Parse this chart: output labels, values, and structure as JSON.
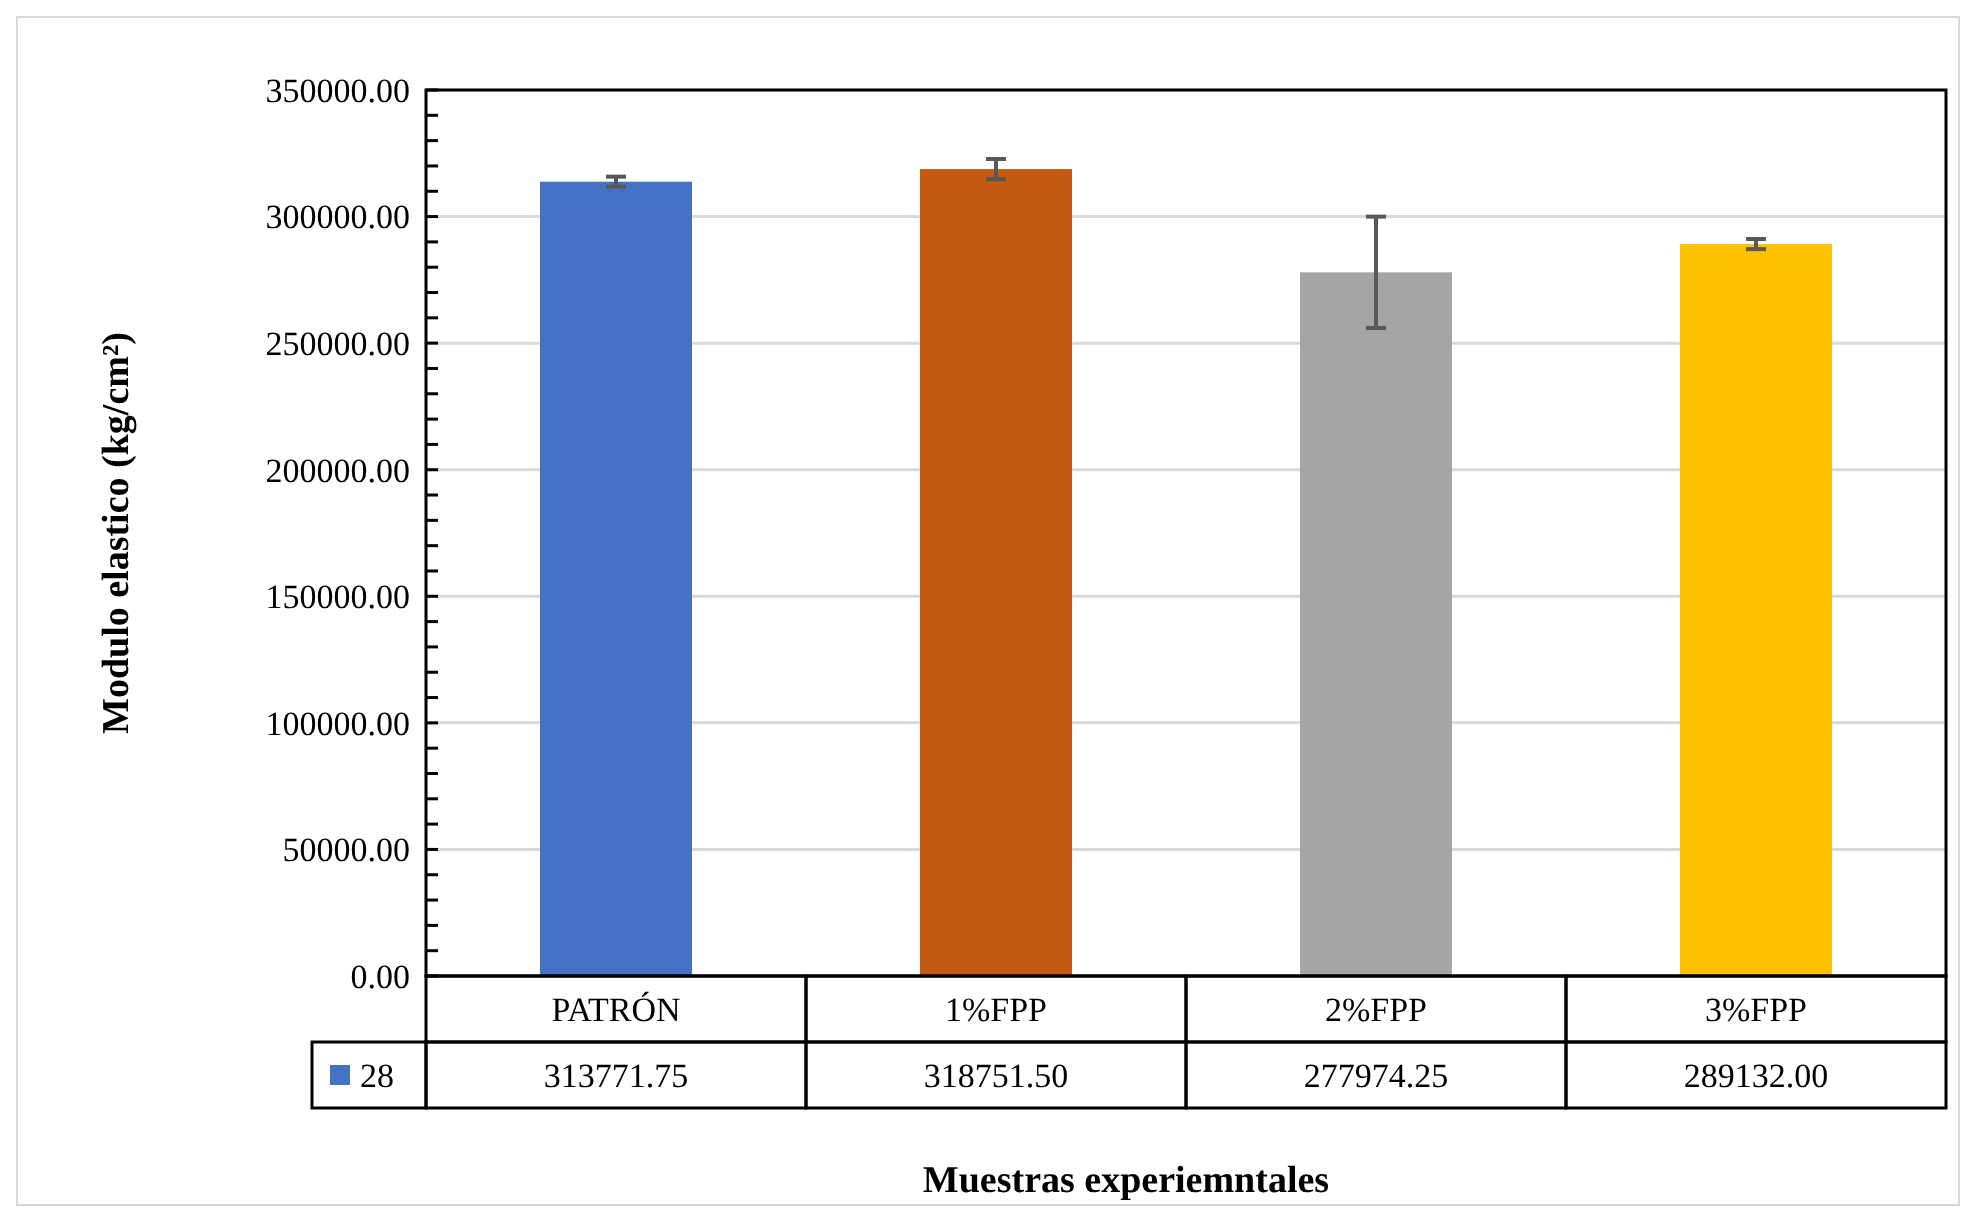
{
  "chart_data": {
    "type": "bar",
    "xlabel": "Muestras experiemntales",
    "ylabel": "Modulo elastico (kg/cm²)",
    "categories": [
      "PATRÓN",
      "1%FPP",
      "2%FPP",
      "3%FPP"
    ],
    "series": [
      {
        "name": "28",
        "color": "#4472c4",
        "colors": [
          "#4472c4",
          "#c55a11",
          "#a5a5a5",
          "#ffc000"
        ],
        "values": [
          313771.75,
          318751.5,
          277974.25,
          289132.0
        ],
        "errors": [
          2000,
          4000,
          22000,
          2000
        ],
        "value_labels": [
          "313771.75",
          "318751.50",
          "277974.25",
          "289132.00"
        ]
      }
    ],
    "grid": "y",
    "legend": "bottom",
    "ylim": [
      0,
      350000
    ],
    "yticks": [
      {
        "value": 0,
        "label": "0.00"
      },
      {
        "value": 10000,
        "label": null
      },
      {
        "value": 20000,
        "label": null
      },
      {
        "value": 30000,
        "label": null
      },
      {
        "value": 40000,
        "label": null
      },
      {
        "value": 50000,
        "label": "50000.00"
      },
      {
        "value": 60000,
        "label": null
      },
      {
        "value": 70000,
        "label": null
      },
      {
        "value": 80000,
        "label": null
      },
      {
        "value": 90000,
        "label": null
      },
      {
        "value": 100000,
        "label": "100000.00"
      },
      {
        "value": 110000,
        "label": null
      },
      {
        "value": 120000,
        "label": null
      },
      {
        "value": 130000,
        "label": null
      },
      {
        "value": 140000,
        "label": null
      },
      {
        "value": 150000,
        "label": "150000.00"
      },
      {
        "value": 160000,
        "label": null
      },
      {
        "value": 170000,
        "label": null
      },
      {
        "value": 180000,
        "label": null
      },
      {
        "value": 190000,
        "label": null
      },
      {
        "value": 200000,
        "label": "200000.00"
      },
      {
        "value": 210000,
        "label": null
      },
      {
        "value": 220000,
        "label": null
      },
      {
        "value": 230000,
        "label": null
      },
      {
        "value": 240000,
        "label": null
      },
      {
        "value": 250000,
        "label": "250000.00"
      },
      {
        "value": 260000,
        "label": null
      },
      {
        "value": 270000,
        "label": null
      },
      {
        "value": 280000,
        "label": null
      },
      {
        "value": 290000,
        "label": null
      },
      {
        "value": 300000,
        "label": "300000.00"
      },
      {
        "value": 310000,
        "label": null
      },
      {
        "value": 320000,
        "label": null
      },
      {
        "value": 330000,
        "label": null
      },
      {
        "value": 340000,
        "label": null
      },
      {
        "value": 350000,
        "label": "350000.00"
      }
    ]
  }
}
